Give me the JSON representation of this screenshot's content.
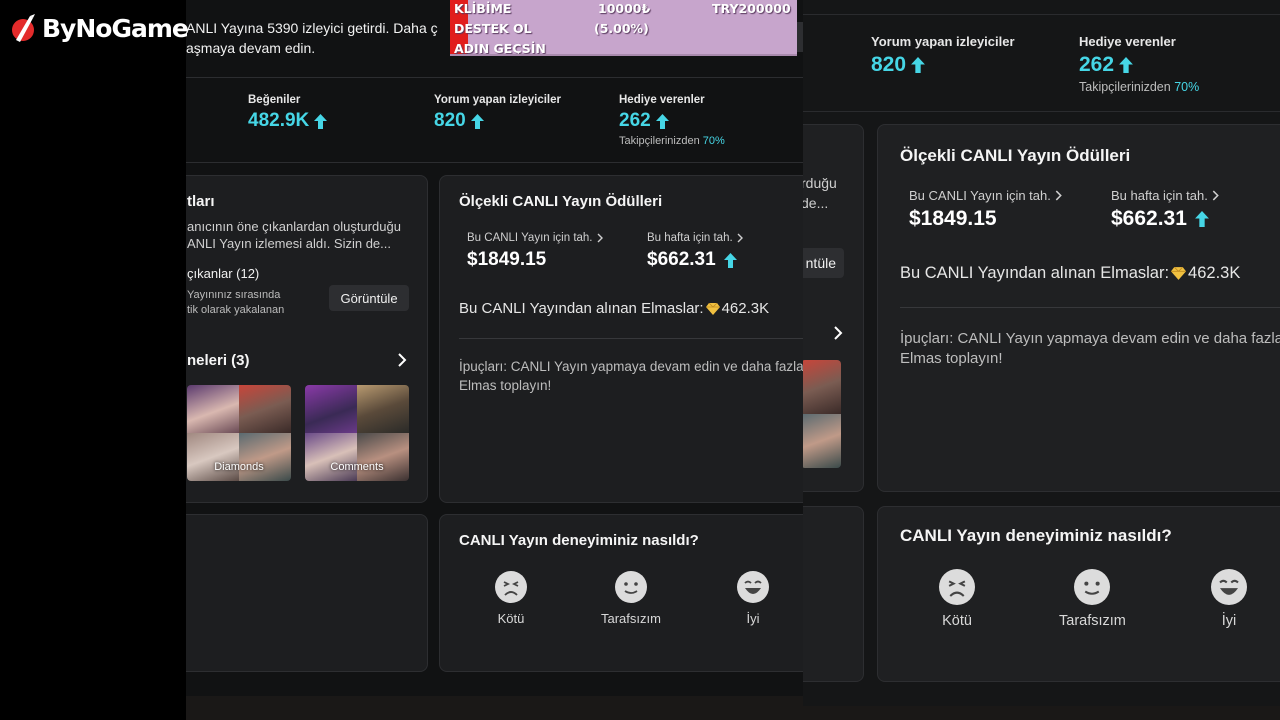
{
  "brand": {
    "logo_text": "ByNoGame"
  },
  "donation": {
    "line1_left": "KLİBİME",
    "line1_mid": "10000₺",
    "line1_right": "TRY200000",
    "line2_left": "DESTEK OL",
    "line2_mid": "(5.00%)",
    "line3_left": "ADIN GEÇSİN",
    "progress": 0.05
  },
  "intro": {
    "line1": "ANLI Yayına 5390 izleyici getirdi. Daha ç",
    "line2": "aşmaya devam edin."
  },
  "stats": {
    "likes_label": "Beğeniler",
    "likes_value": "482.9K",
    "commenters_label": "Yorum yapan izleyiciler",
    "commenters_value": "820",
    "gifters_label": "Hediye verenler",
    "gifters_value": "262",
    "gifters_sub_prefix": "Takipçilerinizden",
    "gifters_sub_pct": "70%"
  },
  "highlights": {
    "title": "tları",
    "desc_line1": "anıcının öne çıkanlardan oluşturduğu",
    "desc_line2": "ANLI Yayın izlemesi aldı. Sizin de...",
    "count_label": "çıkanlar (12)",
    "sub_line1": "Yayınınız sırasında",
    "sub_line2": "tik olarak yakalanan",
    "view_button": "Görüntüle",
    "records_title": "neleri (3)",
    "thumb1_label": "Diamonds",
    "thumb2_label": "Comments"
  },
  "rewards": {
    "title": "Ölçekli CANLI Yayın Ödülleri",
    "live_link": "Bu CANLI Yayın için tah.",
    "live_value": "$1849.15",
    "week_link": "Bu hafta için tah.",
    "week_value": "$662.31",
    "diamonds_prefix": "Bu CANLI Yayından alınan Elmaslar:",
    "diamonds_value": "462.3K",
    "tips_line1": "İpuçları: CANLI Yayın yapmaya devam edin ve daha fazla",
    "tips_line2": "Elmas toplayın!"
  },
  "experience": {
    "title": "CANLI Yayın deneyiminiz nasıldı?",
    "bad": "Kötü",
    "neutral": "Tarafsızım",
    "good": "İyi"
  },
  "bg_panel": {
    "highlight_frag1": "rduğu",
    "highlight_frag2": "de...",
    "view_frag": "ntüle"
  },
  "colors": {
    "accent": "#46d6e6",
    "panel": "#1d1e20",
    "background": "#111213",
    "donation_bg": "#c7a5cc",
    "donation_bar": "#e11d1d"
  }
}
